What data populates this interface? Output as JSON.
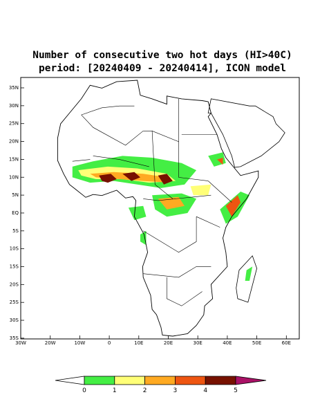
{
  "header": {
    "title": "Number of consecutive two hot days (HI>40C)",
    "subtitle": "period: [20240409 - 20240414], ICON model"
  },
  "axes": {
    "lat_labels": [
      "35N",
      "30N",
      "25N",
      "20N",
      "15N",
      "10N",
      "5N",
      "EQ",
      "5S",
      "10S",
      "15S",
      "20S",
      "25S",
      "30S",
      "35S"
    ],
    "lon_labels": [
      "30W",
      "20W",
      "10W",
      "0",
      "10E",
      "20E",
      "30E",
      "40E",
      "50E",
      "60E"
    ]
  },
  "colorbar": {
    "levels": [
      0,
      1,
      2,
      3,
      4,
      5
    ],
    "colors": [
      "#ffffff",
      "#44ee44",
      "#ffff77",
      "#ffaa22",
      "#ee5511",
      "#771100",
      "#aa1166"
    ]
  }
}
